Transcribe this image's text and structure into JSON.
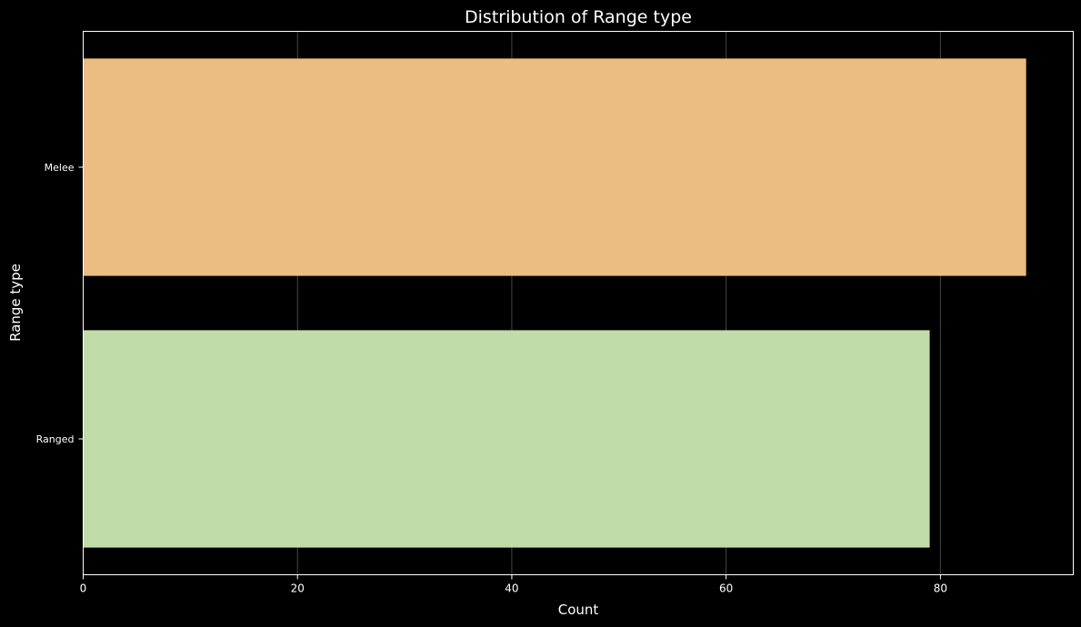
{
  "chart_data": {
    "type": "bar",
    "orientation": "horizontal",
    "title": "Distribution of Range type",
    "xlabel": "Count",
    "ylabel": "Range type",
    "categories": [
      "Melee",
      "Ranged"
    ],
    "values": [
      88,
      79
    ],
    "colors": [
      "#ebbd82",
      "#c1dca9"
    ],
    "xlim": [
      0,
      92.4
    ],
    "xticks": [
      0,
      20,
      40,
      60,
      80
    ],
    "grid": "x",
    "legend": "none",
    "background": "#000000"
  }
}
